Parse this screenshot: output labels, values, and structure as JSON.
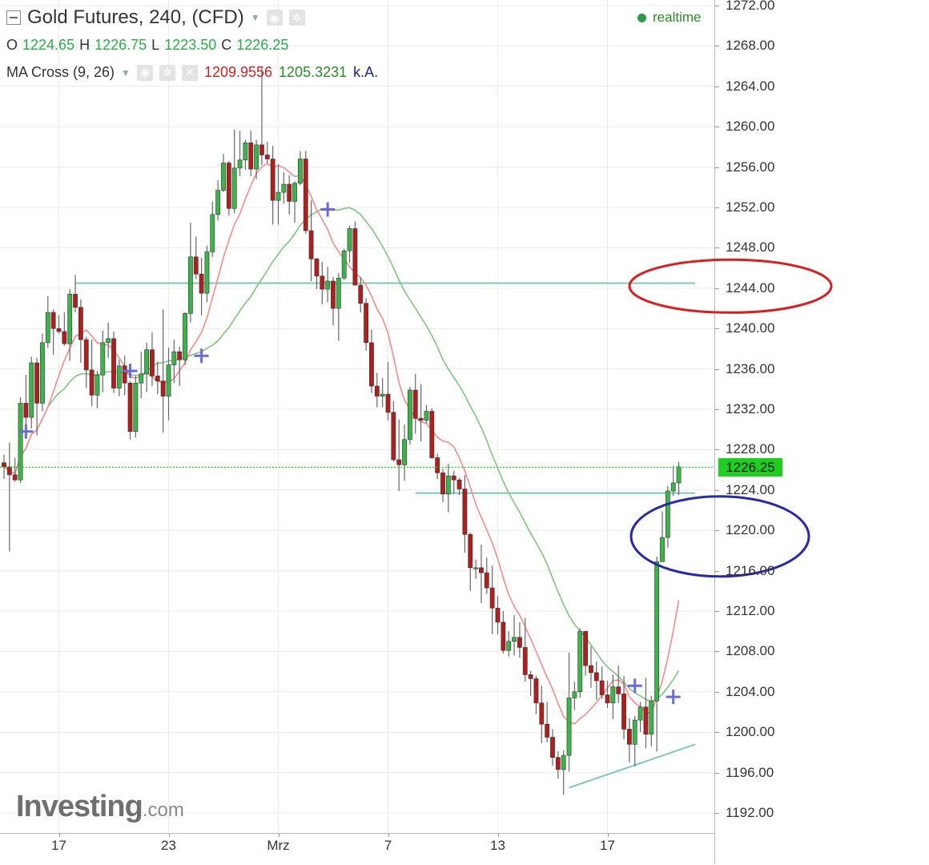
{
  "header": {
    "title": "Gold Futures, 240, (CFD)",
    "ohlc": {
      "o_label": "O",
      "o": "1224.65",
      "h_label": "H",
      "h": "1226.75",
      "l_label": "L",
      "l": "1223.50",
      "c_label": "C",
      "c": "1226.25"
    },
    "indicator": {
      "name": "MA Cross (9, 26)",
      "v1": "1209.9556",
      "v2": "1205.3231",
      "v3": "k.A."
    },
    "status": "realtime"
  },
  "logo": {
    "main": "Investing",
    "suffix": ".com"
  },
  "colors": {
    "up": "#3bb54a",
    "down": "#b01e1e",
    "ma_fast": "#f28b8b",
    "ma_slow": "#7fc47f",
    "hline": "#7fc8b8",
    "last_price": "#1fcf1f",
    "ellipse_red": "#d42020",
    "ellipse_blue": "#2a2aa8"
  },
  "chart_data": {
    "type": "candlestick",
    "y_axis": {
      "ticks": [
        "1272.00",
        "1268.00",
        "1264.00",
        "1260.00",
        "1256.00",
        "1252.00",
        "1248.00",
        "1244.00",
        "1240.00",
        "1236.00",
        "1232.00",
        "1228.00",
        "1224.00",
        "1220.00",
        "1216.00",
        "1212.00",
        "1208.00",
        "1204.00",
        "1200.00",
        "1196.00",
        "1192.00"
      ],
      "range": [
        1190,
        1273
      ],
      "last_price_label": "1226.25",
      "last_price": 1226.25
    },
    "x_axis": {
      "ticks": [
        {
          "label": "17",
          "bar": 10
        },
        {
          "label": "23",
          "bar": 30
        },
        {
          "label": "Mrz",
          "bar": 50
        },
        {
          "label": "7",
          "bar": 70
        },
        {
          "label": "13",
          "bar": 90
        },
        {
          "label": "17",
          "bar": 110
        }
      ]
    },
    "bar_count": 126,
    "series": [
      {
        "kind": "candles",
        "ohlc": [
          [
            1226.7,
            1227.5,
            1225.1,
            1226.3
          ],
          [
            1226.3,
            1228.7,
            1217.9,
            1225.5
          ],
          [
            1225.5,
            1227.2,
            1224.8,
            1225.0
          ],
          [
            1225.0,
            1233.2,
            1224.7,
            1232.6
          ],
          [
            1232.6,
            1235.4,
            1229.5,
            1231.2
          ],
          [
            1231.2,
            1237.2,
            1230.1,
            1236.6
          ],
          [
            1236.6,
            1237.1,
            1229.4,
            1232.6
          ],
          [
            1232.6,
            1239.5,
            1231.8,
            1238.6
          ],
          [
            1238.6,
            1243.2,
            1238.1,
            1241.6
          ],
          [
            1241.6,
            1241.9,
            1237.4,
            1240.0
          ],
          [
            1240.0,
            1241.3,
            1239.5,
            1239.7
          ],
          [
            1239.7,
            1241.6,
            1238.3,
            1238.5
          ],
          [
            1238.5,
            1243.9,
            1236.8,
            1243.4
          ],
          [
            1243.4,
            1245.3,
            1241.6,
            1242.1
          ],
          [
            1242.1,
            1242.9,
            1236.6,
            1238.9
          ],
          [
            1238.9,
            1239.2,
            1234.1,
            1235.9
          ],
          [
            1235.9,
            1238.9,
            1232.3,
            1233.4
          ],
          [
            1233.4,
            1235.8,
            1232.1,
            1235.4
          ],
          [
            1235.4,
            1239.8,
            1233.7,
            1238.6
          ],
          [
            1238.6,
            1240.6,
            1237.1,
            1239.0
          ],
          [
            1239.0,
            1239.7,
            1233.6,
            1234.1
          ],
          [
            1234.1,
            1236.9,
            1233.3,
            1236.3
          ],
          [
            1236.3,
            1237.3,
            1233.4,
            1234.6
          ],
          [
            1234.6,
            1234.8,
            1229.0,
            1229.8
          ],
          [
            1229.8,
            1235.3,
            1229.2,
            1234.6
          ],
          [
            1234.6,
            1237.7,
            1233.1,
            1235.5
          ],
          [
            1235.5,
            1238.6,
            1233.7,
            1237.9
          ],
          [
            1237.9,
            1239.6,
            1234.3,
            1235.3
          ],
          [
            1235.3,
            1236.7,
            1233.5,
            1234.8
          ],
          [
            1234.8,
            1241.9,
            1229.7,
            1233.3
          ],
          [
            1233.3,
            1238.1,
            1230.9,
            1236.4
          ],
          [
            1236.4,
            1238.9,
            1234.6,
            1237.7
          ],
          [
            1237.7,
            1238.2,
            1234.3,
            1236.9
          ],
          [
            1236.9,
            1241.6,
            1236.4,
            1241.5
          ],
          [
            1241.5,
            1250.5,
            1240.6,
            1247.1
          ],
          [
            1247.1,
            1249.1,
            1244.9,
            1245.4
          ],
          [
            1245.4,
            1247.0,
            1241.3,
            1243.5
          ],
          [
            1243.5,
            1248.2,
            1242.6,
            1247.6
          ],
          [
            1247.6,
            1252.6,
            1247.1,
            1251.3
          ],
          [
            1251.3,
            1254.7,
            1250.7,
            1253.7
          ],
          [
            1253.7,
            1257.3,
            1253.5,
            1256.4
          ],
          [
            1256.4,
            1256.6,
            1251.2,
            1251.9
          ],
          [
            1251.9,
            1259.7,
            1251.4,
            1255.9
          ],
          [
            1255.9,
            1259.6,
            1255.1,
            1256.7
          ],
          [
            1256.7,
            1258.7,
            1255.7,
            1258.4
          ],
          [
            1258.4,
            1259.6,
            1255.1,
            1255.8
          ],
          [
            1255.8,
            1258.7,
            1254.8,
            1258.2
          ],
          [
            1258.2,
            1266.0,
            1256.2,
            1257.2
          ],
          [
            1257.2,
            1258.5,
            1256.4,
            1256.8
          ],
          [
            1256.8,
            1258.1,
            1250.3,
            1252.7
          ],
          [
            1252.7,
            1256.3,
            1250.3,
            1253.5
          ],
          [
            1253.5,
            1255.5,
            1252.4,
            1254.3
          ],
          [
            1254.3,
            1255.2,
            1251.3,
            1252.6
          ],
          [
            1252.6,
            1254.6,
            1250.5,
            1254.4
          ],
          [
            1254.4,
            1257.6,
            1254.2,
            1256.8
          ],
          [
            1256.8,
            1257.6,
            1249.4,
            1249.7
          ],
          [
            1249.7,
            1252.7,
            1244.7,
            1246.9
          ],
          [
            1246.9,
            1247.0,
            1243.9,
            1245.2
          ],
          [
            1245.2,
            1246.6,
            1242.4,
            1243.9
          ],
          [
            1243.9,
            1246.1,
            1242.6,
            1244.7
          ],
          [
            1244.7,
            1245.1,
            1240.3,
            1242.0
          ],
          [
            1242.0,
            1245.5,
            1238.8,
            1245.0
          ],
          [
            1245.0,
            1247.9,
            1244.8,
            1247.7
          ],
          [
            1247.7,
            1250.2,
            1246.5,
            1249.9
          ],
          [
            1249.9,
            1250.6,
            1244.3,
            1244.3
          ],
          [
            1244.3,
            1245.1,
            1241.6,
            1242.5
          ],
          [
            1242.5,
            1243.0,
            1237.8,
            1238.6
          ],
          [
            1238.6,
            1239.9,
            1233.6,
            1234.3
          ],
          [
            1234.3,
            1235.6,
            1232.2,
            1233.3
          ],
          [
            1233.3,
            1235.1,
            1232.2,
            1233.5
          ],
          [
            1233.5,
            1236.7,
            1230.9,
            1231.7
          ],
          [
            1231.7,
            1232.8,
            1226.8,
            1227.0
          ],
          [
            1227.0,
            1231.0,
            1223.9,
            1226.5
          ],
          [
            1226.5,
            1230.5,
            1224.9,
            1229.0
          ],
          [
            1229.0,
            1234.2,
            1228.5,
            1233.9
          ],
          [
            1233.9,
            1235.5,
            1229.6,
            1231.1
          ],
          [
            1231.1,
            1234.5,
            1228.8,
            1230.9
          ],
          [
            1230.9,
            1232.4,
            1230.6,
            1231.8
          ],
          [
            1231.8,
            1232.1,
            1227.1,
            1227.2
          ],
          [
            1227.2,
            1227.6,
            1225.1,
            1225.7
          ],
          [
            1225.7,
            1226.1,
            1222.8,
            1223.6
          ],
          [
            1223.6,
            1226.6,
            1221.8,
            1225.4
          ],
          [
            1225.4,
            1225.9,
            1223.6,
            1225.0
          ],
          [
            1225.0,
            1225.2,
            1223.5,
            1224.1
          ],
          [
            1224.1,
            1225.5,
            1217.8,
            1219.6
          ],
          [
            1219.6,
            1219.8,
            1214.0,
            1216.3
          ],
          [
            1216.3,
            1217.1,
            1215.2,
            1216.3
          ],
          [
            1216.3,
            1218.6,
            1212.8,
            1215.8
          ],
          [
            1215.8,
            1217.3,
            1213.7,
            1214.3
          ],
          [
            1214.3,
            1216.5,
            1209.7,
            1212.3
          ],
          [
            1212.3,
            1213.5,
            1209.7,
            1210.9
          ],
          [
            1210.9,
            1212.0,
            1207.8,
            1208.1
          ],
          [
            1208.1,
            1210.0,
            1207.5,
            1209.0
          ],
          [
            1209.0,
            1211.6,
            1207.6,
            1209.4
          ],
          [
            1209.4,
            1210.9,
            1207.4,
            1208.4
          ],
          [
            1208.4,
            1211.3,
            1205.0,
            1205.7
          ],
          [
            1205.7,
            1206.1,
            1203.6,
            1205.3
          ],
          [
            1205.3,
            1205.6,
            1201.8,
            1202.9
          ],
          [
            1202.9,
            1204.6,
            1198.9,
            1200.8
          ],
          [
            1200.8,
            1203.0,
            1199.0,
            1199.5
          ],
          [
            1199.5,
            1200.3,
            1196.7,
            1197.5
          ],
          [
            1197.5,
            1198.1,
            1195.4,
            1196.3
          ],
          [
            1196.3,
            1198.2,
            1193.8,
            1197.7
          ],
          [
            1197.7,
            1207.9,
            1196.1,
            1203.4
          ],
          [
            1203.4,
            1205.0,
            1202.2,
            1204.0
          ],
          [
            1204.0,
            1210.3,
            1203.4,
            1210.0
          ],
          [
            1210.0,
            1210.0,
            1205.6,
            1206.6
          ],
          [
            1206.6,
            1208.5,
            1204.4,
            1205.9
          ],
          [
            1205.9,
            1207.0,
            1203.2,
            1205.1
          ],
          [
            1205.1,
            1206.5,
            1203.3,
            1203.7
          ],
          [
            1203.7,
            1205.1,
            1202.4,
            1202.9
          ],
          [
            1202.9,
            1205.7,
            1201.3,
            1204.5
          ],
          [
            1204.5,
            1206.6,
            1202.9,
            1203.8
          ],
          [
            1203.8,
            1205.6,
            1199.3,
            1200.3
          ],
          [
            1200.3,
            1201.4,
            1197.0,
            1198.8
          ],
          [
            1198.8,
            1201.6,
            1196.6,
            1201.2
          ],
          [
            1201.2,
            1203.0,
            1200.0,
            1202.5
          ],
          [
            1202.5,
            1205.4,
            1198.4,
            1199.8
          ],
          [
            1199.8,
            1203.6,
            1198.6,
            1203.1
          ],
          [
            1203.1,
            1217.4,
            1198.1,
            1216.9
          ],
          [
            1216.9,
            1221.9,
            1216.9,
            1219.3
          ],
          [
            1219.3,
            1224.4,
            1218.3,
            1223.9
          ],
          [
            1223.9,
            1226.4,
            1223.4,
            1224.7
          ],
          [
            1224.7,
            1226.8,
            1223.5,
            1226.3
          ]
        ]
      },
      {
        "kind": "ma",
        "name": "MA 9"
      },
      {
        "kind": "ma",
        "name": "MA 26"
      }
    ],
    "horizontal_lines": [
      {
        "price": 1244.5,
        "from_bar": 13,
        "to_bar": 126
      },
      {
        "price": 1223.7,
        "from_bar": 75,
        "to_bar": 126
      }
    ],
    "trend_line": {
      "from_bar": 103,
      "from_price": 1194.5,
      "to_bar": 126,
      "to_price": 1198.8
    },
    "cross_markers": [
      {
        "bar": 4,
        "price": 1229.8
      },
      {
        "bar": 23,
        "price": 1235.8
      },
      {
        "bar": 36,
        "price": 1237.3
      },
      {
        "bar": 59,
        "price": 1251.8
      },
      {
        "bar": 115,
        "price": 1204.6
      },
      {
        "bar": 122,
        "price": 1203.5
      }
    ],
    "ellipses": [
      {
        "color": "red",
        "center_price": 1244.2
      },
      {
        "color": "blue",
        "center_price": 1219.4
      }
    ]
  }
}
